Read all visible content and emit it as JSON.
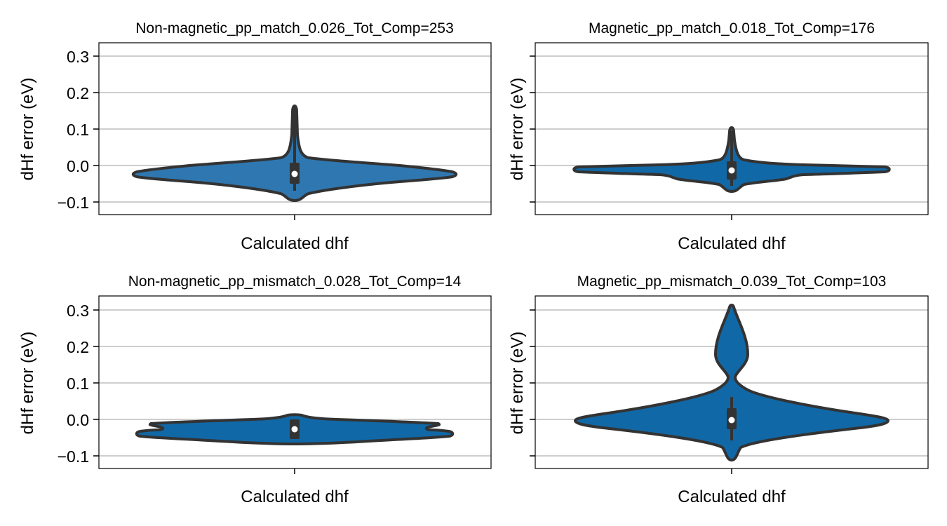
{
  "chart_data": [
    {
      "type": "violin",
      "title": "Non-magnetic_pp_match_0.026_Tot_Comp=253",
      "xlabel": "Calculated dhf",
      "ylabel": "dHf error (eV)",
      "categories": [
        "Calculated dhf"
      ],
      "yticks": [
        "0.3",
        "0.2",
        "0.1",
        "0.0",
        "−0.1"
      ],
      "ylim": [
        -0.13,
        0.34
      ],
      "grid": "y",
      "violin_min": -0.095,
      "violin_max": 0.17,
      "box_q1": -0.045,
      "box_q3": 0.005,
      "median": -0.022,
      "whisker_low": -0.07,
      "whisker_high": 0.16
    },
    {
      "type": "violin",
      "title": "Magnetic_pp_match_0.018_Tot_Comp=176",
      "xlabel": "Calculated dhf",
      "ylabel": "dHf error (eV)",
      "categories": [
        "Calculated dhf"
      ],
      "yticks": [
        "",
        "",
        "",
        "",
        ""
      ],
      "ylim": [
        -0.13,
        0.34
      ],
      "grid": "y",
      "violin_min": -0.068,
      "violin_max": 0.105,
      "box_q1": -0.03,
      "box_q3": 0.0,
      "median": -0.012,
      "whisker_low": -0.055,
      "whisker_high": 0.09
    },
    {
      "type": "violin",
      "title": "Non-magnetic_pp_mismatch_0.028_Tot_Comp=14",
      "xlabel": "Calculated dhf",
      "ylabel": "dHf error (eV)",
      "categories": [
        "Calculated dhf"
      ],
      "yticks": [
        "0.3",
        "0.2",
        "0.1",
        "0.0",
        "−0.1"
      ],
      "ylim": [
        -0.13,
        0.34
      ],
      "grid": "y",
      "violin_min": -0.068,
      "violin_max": 0.012,
      "box_q1": -0.05,
      "box_q3": -0.01,
      "median": -0.028,
      "whisker_low": -0.055,
      "whisker_high": 0.0
    },
    {
      "type": "violin",
      "title": "Magnetic_pp_mismatch_0.039_Tot_Comp=103",
      "xlabel": "Calculated dhf",
      "ylabel": "dHf error (eV)",
      "categories": [
        "Calculated dhf"
      ],
      "yticks": [
        "",
        "",
        "",
        "",
        ""
      ],
      "ylim": [
        -0.13,
        0.34
      ],
      "grid": "y",
      "violin_min": -0.115,
      "violin_max": 0.32,
      "box_q1": -0.02,
      "box_q3": 0.03,
      "median": -0.003,
      "whisker_low": -0.06,
      "whisker_high": 0.065
    }
  ],
  "colors": {
    "violin_fill_first": "#2f77b0",
    "violin_fill": "#1168a6",
    "outline": "#333333",
    "grid": "#b0b0b0",
    "median_dot": "#ffffff"
  }
}
